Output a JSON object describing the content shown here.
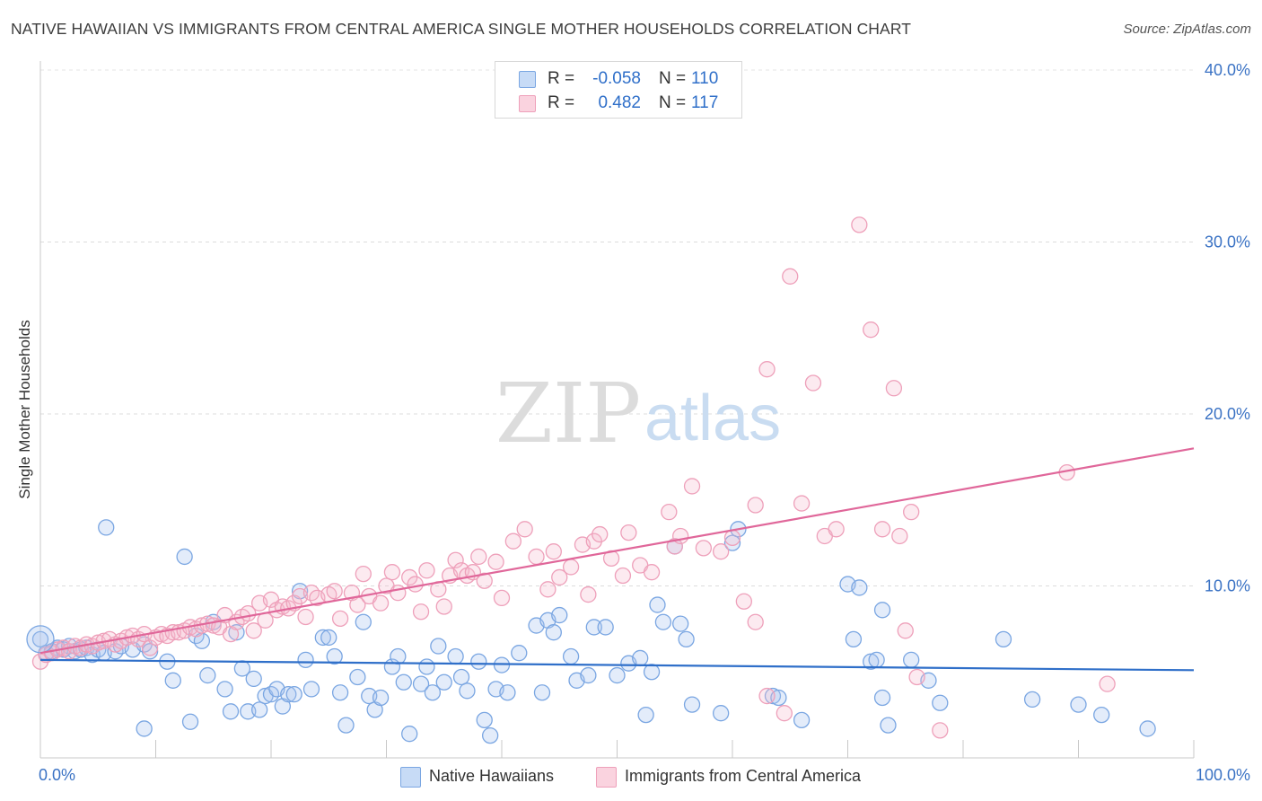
{
  "header": {
    "title": "NATIVE HAWAIIAN VS IMMIGRANTS FROM CENTRAL AMERICA SINGLE MOTHER HOUSEHOLDS CORRELATION CHART",
    "source": "Source: ZipAtlas.com"
  },
  "watermark": {
    "zip": "ZIP",
    "atlas": "atlas"
  },
  "stats": [
    {
      "r_label": "R =",
      "r_value": "-0.058",
      "n_label": "N =",
      "n_value": "110",
      "color": "#a7c4ee"
    },
    {
      "r_label": "R =",
      "r_value": "0.482",
      "n_label": "N =",
      "n_value": "117",
      "color": "#f6b9cc"
    }
  ],
  "legend": [
    {
      "label": "Native Hawaiians",
      "color": "#a7c4ee"
    },
    {
      "label": "Immigrants from Central America",
      "color": "#f6b9cc"
    }
  ],
  "chart_data": {
    "type": "scatter",
    "title": "NATIVE HAWAIIAN VS IMMIGRANTS FROM CENTRAL AMERICA SINGLE MOTHER HOUSEHOLDS CORRELATION CHART",
    "xlabel": "",
    "ylabel": "Single Mother Households",
    "xlim": [
      0,
      100
    ],
    "ylim": [
      0,
      40
    ],
    "x_tick_labels": [
      "0.0%",
      "100.0%"
    ],
    "y_tick_labels": [
      "10.0%",
      "20.0%",
      "30.0%",
      "40.0%"
    ],
    "y_ticks": [
      10,
      20,
      30,
      40
    ],
    "grid": true,
    "legend_position": "bottom",
    "series": [
      {
        "name": "Native Hawaiians",
        "color": "#6f9fe0",
        "trend": {
          "x": [
            0,
            100
          ],
          "y": [
            5.7,
            5.1
          ]
        },
        "points": [
          [
            0,
            6.9
          ],
          [
            0.5,
            6.1
          ],
          [
            1,
            6.2
          ],
          [
            1.5,
            6.4
          ],
          [
            2,
            6.3
          ],
          [
            2.5,
            6.5
          ],
          [
            3,
            6.2
          ],
          [
            3.5,
            6.3
          ],
          [
            4,
            6.4
          ],
          [
            4.5,
            6.0
          ],
          [
            5,
            6.3
          ],
          [
            5.5,
            6.1
          ],
          [
            6.5,
            6.2
          ],
          [
            7,
            6.5
          ],
          [
            8,
            6.3
          ],
          [
            9,
            6.6
          ],
          [
            5.7,
            13.4
          ],
          [
            9,
            1.7
          ],
          [
            9.5,
            6.2
          ],
          [
            11,
            5.6
          ],
          [
            11.5,
            4.5
          ],
          [
            12.5,
            11.7
          ],
          [
            13,
            2.1
          ],
          [
            13.5,
            7.1
          ],
          [
            14,
            6.8
          ],
          [
            14.5,
            4.8
          ],
          [
            15,
            7.9
          ],
          [
            16,
            4.0
          ],
          [
            16.5,
            2.7
          ],
          [
            17,
            7.3
          ],
          [
            17.5,
            5.2
          ],
          [
            18,
            2.7
          ],
          [
            18.5,
            4.6
          ],
          [
            19,
            2.8
          ],
          [
            19.5,
            3.6
          ],
          [
            20,
            3.7
          ],
          [
            20.5,
            4.0
          ],
          [
            21,
            3.0
          ],
          [
            21.5,
            3.7
          ],
          [
            22,
            3.7
          ],
          [
            22.5,
            9.7
          ],
          [
            23,
            5.7
          ],
          [
            23.5,
            4.0
          ],
          [
            24.5,
            7.0
          ],
          [
            25,
            7.0
          ],
          [
            25.5,
            5.9
          ],
          [
            26,
            3.8
          ],
          [
            26.5,
            1.9
          ],
          [
            27.5,
            4.7
          ],
          [
            28,
            7.9
          ],
          [
            28.5,
            3.6
          ],
          [
            29,
            2.8
          ],
          [
            29.5,
            3.5
          ],
          [
            30.5,
            5.3
          ],
          [
            31,
            5.9
          ],
          [
            31.5,
            4.4
          ],
          [
            32,
            1.4
          ],
          [
            33,
            4.3
          ],
          [
            33.5,
            5.3
          ],
          [
            34,
            3.8
          ],
          [
            34.5,
            6.5
          ],
          [
            35,
            4.4
          ],
          [
            36,
            5.9
          ],
          [
            36.5,
            4.7
          ],
          [
            37,
            3.9
          ],
          [
            38,
            5.6
          ],
          [
            38.5,
            2.2
          ],
          [
            39,
            1.3
          ],
          [
            39.5,
            4.0
          ],
          [
            40,
            5.4
          ],
          [
            40.5,
            3.8
          ],
          [
            41.5,
            6.1
          ],
          [
            43,
            7.7
          ],
          [
            43.5,
            3.8
          ],
          [
            44,
            8.0
          ],
          [
            44.5,
            7.3
          ],
          [
            45,
            8.3
          ],
          [
            46,
            5.9
          ],
          [
            46.5,
            4.5
          ],
          [
            47.5,
            4.8
          ],
          [
            48,
            7.6
          ],
          [
            49,
            7.6
          ],
          [
            50,
            4.8
          ],
          [
            51,
            5.5
          ],
          [
            52,
            5.8
          ],
          [
            52.5,
            2.5
          ],
          [
            53,
            5.0
          ],
          [
            53.5,
            8.9
          ],
          [
            54,
            7.9
          ],
          [
            55,
            12.3
          ],
          [
            55.5,
            7.8
          ],
          [
            56,
            6.9
          ],
          [
            56.5,
            3.1
          ],
          [
            59,
            2.6
          ],
          [
            60,
            12.5
          ],
          [
            60.5,
            13.3
          ],
          [
            63.5,
            3.6
          ],
          [
            64,
            3.5
          ],
          [
            66,
            2.2
          ],
          [
            70,
            10.1
          ],
          [
            70.5,
            6.9
          ],
          [
            71,
            9.9
          ],
          [
            72,
            5.6
          ],
          [
            72.5,
            5.7
          ],
          [
            73,
            8.6
          ],
          [
            73.5,
            1.9
          ],
          [
            75.5,
            5.7
          ],
          [
            77,
            4.5
          ],
          [
            78,
            3.2
          ],
          [
            86,
            3.4
          ],
          [
            83.5,
            6.9
          ],
          [
            90,
            3.1
          ],
          [
            92,
            2.5
          ],
          [
            96,
            1.7
          ],
          [
            73,
            3.5
          ]
        ]
      },
      {
        "name": "Immigrants from Central America",
        "color": "#ec8fb0",
        "trend": {
          "x": [
            0,
            100
          ],
          "y": [
            6.1,
            18.0
          ]
        },
        "points": [
          [
            0,
            5.6
          ],
          [
            0.5,
            6.0
          ],
          [
            1,
            6.1
          ],
          [
            1.5,
            6.3
          ],
          [
            2,
            6.4
          ],
          [
            2.5,
            6.2
          ],
          [
            3,
            6.5
          ],
          [
            3.5,
            6.4
          ],
          [
            4,
            6.6
          ],
          [
            4.5,
            6.5
          ],
          [
            5,
            6.7
          ],
          [
            5.5,
            6.8
          ],
          [
            6,
            6.9
          ],
          [
            6.5,
            6.6
          ],
          [
            7,
            6.8
          ],
          [
            7.5,
            7.0
          ],
          [
            8,
            7.1
          ],
          [
            8.5,
            6.9
          ],
          [
            9,
            7.2
          ],
          [
            9.5,
            6.4
          ],
          [
            10,
            7.0
          ],
          [
            10.5,
            7.2
          ],
          [
            11,
            7.1
          ],
          [
            11.5,
            7.3
          ],
          [
            12,
            7.3
          ],
          [
            12.5,
            7.4
          ],
          [
            13,
            7.6
          ],
          [
            13.5,
            7.5
          ],
          [
            14,
            7.7
          ],
          [
            14.5,
            7.8
          ],
          [
            15,
            7.7
          ],
          [
            15.5,
            7.6
          ],
          [
            16,
            8.3
          ],
          [
            16.5,
            7.2
          ],
          [
            17,
            7.9
          ],
          [
            17.5,
            8.2
          ],
          [
            18,
            8.4
          ],
          [
            18.5,
            7.4
          ],
          [
            19,
            9.0
          ],
          [
            19.5,
            8.0
          ],
          [
            20,
            9.2
          ],
          [
            20.5,
            8.6
          ],
          [
            21,
            8.8
          ],
          [
            21.5,
            8.7
          ],
          [
            22,
            9.0
          ],
          [
            22.5,
            9.4
          ],
          [
            23,
            8.2
          ],
          [
            23.5,
            9.6
          ],
          [
            24,
            9.3
          ],
          [
            25,
            9.5
          ],
          [
            25.5,
            9.7
          ],
          [
            26,
            8.1
          ],
          [
            27,
            9.6
          ],
          [
            27.5,
            8.9
          ],
          [
            28,
            10.7
          ],
          [
            28.5,
            9.4
          ],
          [
            29.5,
            9.0
          ],
          [
            30,
            10.0
          ],
          [
            30.5,
            10.8
          ],
          [
            31,
            9.6
          ],
          [
            32,
            10.5
          ],
          [
            32.5,
            10.1
          ],
          [
            33,
            8.5
          ],
          [
            33.5,
            10.9
          ],
          [
            34.5,
            9.8
          ],
          [
            35,
            8.8
          ],
          [
            35.5,
            10.6
          ],
          [
            36,
            11.5
          ],
          [
            36.5,
            10.9
          ],
          [
            37,
            10.6
          ],
          [
            37.5,
            10.8
          ],
          [
            38,
            11.7
          ],
          [
            38.5,
            10.3
          ],
          [
            39.5,
            11.4
          ],
          [
            40,
            9.3
          ],
          [
            41,
            12.6
          ],
          [
            42,
            13.3
          ],
          [
            43,
            11.7
          ],
          [
            44,
            9.8
          ],
          [
            44.5,
            12.0
          ],
          [
            45,
            10.5
          ],
          [
            46,
            11.1
          ],
          [
            47,
            12.4
          ],
          [
            47.5,
            9.5
          ],
          [
            48,
            12.6
          ],
          [
            48.5,
            13.0
          ],
          [
            49.5,
            11.6
          ],
          [
            50.5,
            10.6
          ],
          [
            51,
            13.1
          ],
          [
            52,
            11.2
          ],
          [
            53,
            10.8
          ],
          [
            54.5,
            14.3
          ],
          [
            55,
            12.3
          ],
          [
            55.5,
            12.9
          ],
          [
            56.5,
            15.8
          ],
          [
            57.5,
            12.2
          ],
          [
            59,
            12.0
          ],
          [
            60,
            12.8
          ],
          [
            62,
            14.7
          ],
          [
            63,
            22.6
          ],
          [
            65,
            28.0
          ],
          [
            66,
            14.8
          ],
          [
            67,
            21.8
          ],
          [
            68,
            12.9
          ],
          [
            69,
            13.3
          ],
          [
            71,
            31.0
          ],
          [
            72,
            24.9
          ],
          [
            73,
            13.3
          ],
          [
            74,
            21.5
          ],
          [
            74.5,
            12.9
          ],
          [
            75.5,
            14.3
          ],
          [
            61,
            9.1
          ],
          [
            62,
            7.9
          ],
          [
            63,
            3.6
          ],
          [
            64.5,
            2.6
          ],
          [
            75,
            7.4
          ],
          [
            76,
            4.7
          ],
          [
            78,
            1.6
          ],
          [
            89,
            16.6
          ],
          [
            92.5,
            4.3
          ]
        ]
      }
    ]
  }
}
